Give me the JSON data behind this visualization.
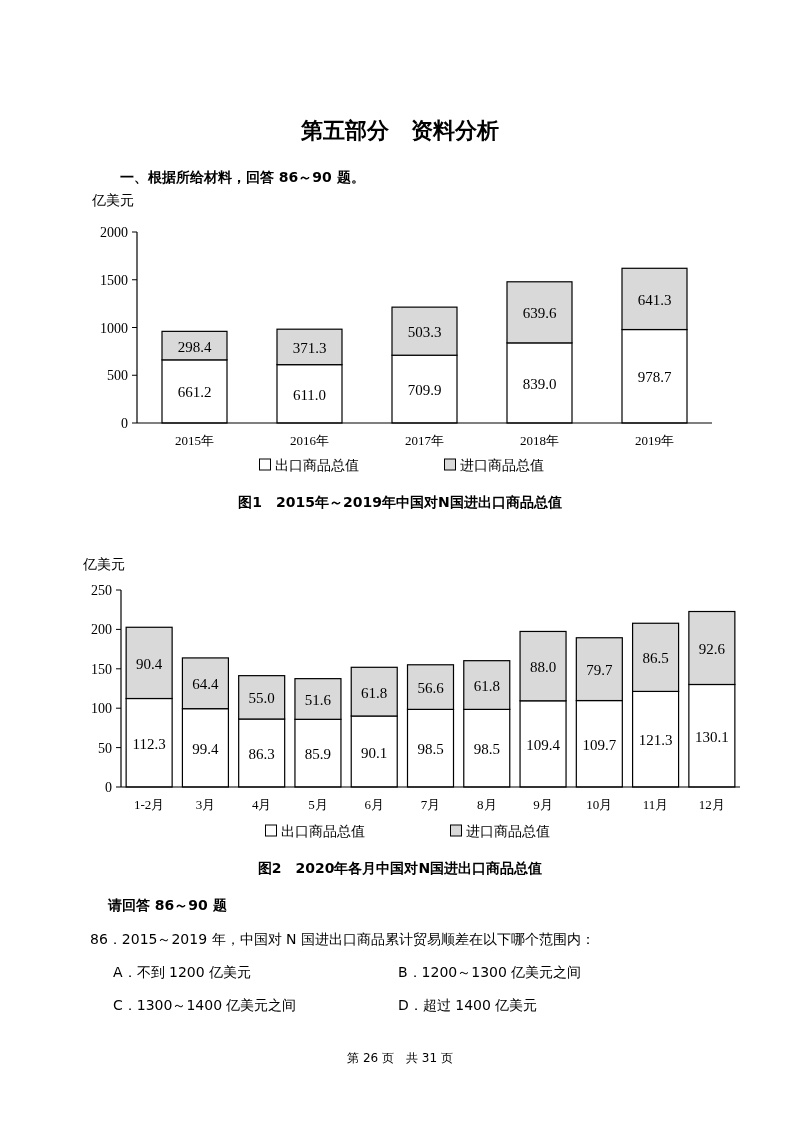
{
  "chart_data": [
    {
      "type": "bar",
      "stacked": true,
      "title": "图1　2015年～2019年中国对N国进出口商品总值",
      "ylabel": "亿美元",
      "categories": [
        "2015年",
        "2016年",
        "2017年",
        "2018年",
        "2019年"
      ],
      "ylim": [
        0,
        2000
      ],
      "yticks": [
        0,
        500,
        1000,
        1500,
        2000
      ],
      "grid": false,
      "legend": "bottom",
      "series": [
        {
          "name": "出口商品总值",
          "color": "#ffffff",
          "values": [
            661.2,
            611.0,
            709.9,
            839.0,
            978.7
          ],
          "value_labels": [
            "661.2",
            "611.0",
            "709.9",
            "839.0",
            "978.7"
          ]
        },
        {
          "name": "进口商品总值",
          "color": "#d9d9d9",
          "values": [
            298.4,
            371.3,
            503.3,
            639.6,
            641.3
          ],
          "value_labels": [
            "298.4",
            "371.3",
            "503.3",
            "639.6",
            "641.3"
          ]
        }
      ],
      "annotations": [
        "第五部分　资料分析",
        "一、根据所给材料，回答 86～90 题。"
      ]
    },
    {
      "type": "bar",
      "stacked": true,
      "title": "图2　2020年各月中国对N国进出口商品总值",
      "ylabel": "亿美元",
      "categories": [
        "1-2月",
        "3月",
        "4月",
        "5月",
        "6月",
        "7月",
        "8月",
        "9月",
        "10月",
        "11月",
        "12月"
      ],
      "ylim": [
        0,
        250
      ],
      "yticks": [
        0,
        50,
        100,
        150,
        200,
        250
      ],
      "grid": false,
      "legend": "bottom",
      "series": [
        {
          "name": "出口商品总值",
          "color": "#ffffff",
          "values": [
            112.3,
            99.4,
            86.3,
            85.9,
            90.1,
            98.5,
            98.5,
            109.4,
            109.7,
            121.3,
            130.1
          ],
          "value_labels": [
            "112.3",
            "99.4",
            "86.3",
            "85.9",
            "90.1",
            "98.5",
            "98.5",
            "109.4",
            "109.7",
            "121.3",
            "130.1"
          ]
        },
        {
          "name": "进口商品总值",
          "color": "#d9d9d9",
          "values": [
            90.4,
            64.4,
            55.0,
            51.6,
            61.8,
            56.6,
            61.8,
            88.0,
            79.7,
            86.5,
            92.6
          ],
          "value_labels": [
            "90.4",
            "64.4",
            "55.0",
            "51.6",
            "61.8",
            "56.6",
            "61.8",
            "88.0",
            "79.7",
            "86.5",
            "92.6"
          ]
        }
      ],
      "annotations": [
        "请回答 86～90 题",
        "86．2015～2019 年，中国对 N 国进出口商品累计贸易顺差在以下哪个范围内：",
        "A．不到 1200 亿美元",
        "B．1200～1300 亿美元之间",
        "C．1300～1400 亿美元之间",
        "D．超过 1400 亿美元",
        "第 26 页　共 31 页"
      ]
    }
  ]
}
